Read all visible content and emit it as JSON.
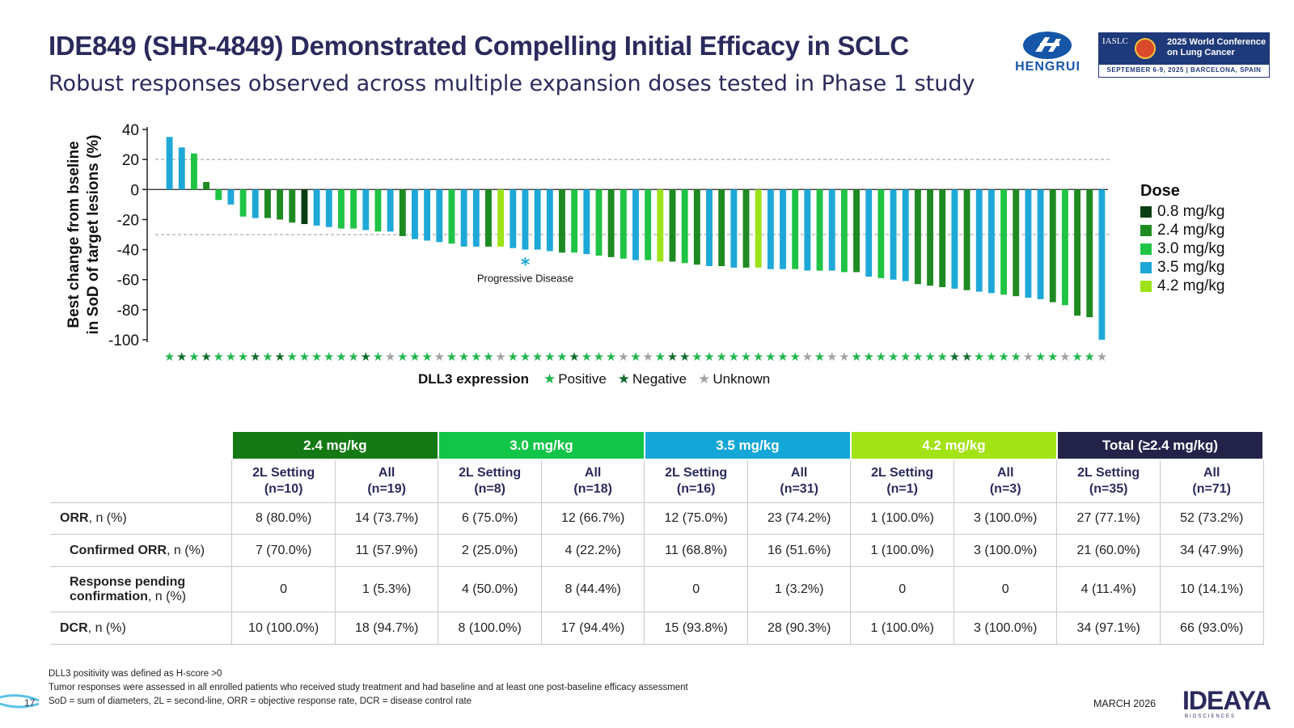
{
  "header": {
    "title": "IDE849 (SHR-4849) Demonstrated Compelling Initial Efficacy in SCLC",
    "subtitle": "Robust responses observed across multiple expansion doses tested in Phase 1 study"
  },
  "logos": {
    "hengrui": "HENGRUI",
    "iaslc_brand": "IASLC",
    "iaslc_conf": "2025 World Conference on Lung Cancer",
    "iaslc_date": "SEPTEMBER 6-9, 2025 | BARCELONA, SPAIN"
  },
  "chart_data": {
    "type": "bar",
    "ylabel_line1": "Best change from bseline",
    "ylabel_line2": "in SoD of target lesions (%)",
    "ylim": [
      -100,
      40
    ],
    "yticks": [
      "40",
      "20",
      "0",
      "-20",
      "-40",
      "-60",
      "-80",
      "-100"
    ],
    "reference_lines": [
      20,
      -30
    ],
    "annotation": {
      "marker": "*",
      "text": "Progressive Disease"
    },
    "dose_legend_title": "Dose",
    "dose_legend": [
      {
        "key": "0.8",
        "label": "0.8 mg/kg",
        "color": "#0b3d14"
      },
      {
        "key": "2.4",
        "label": "2.4 mg/kg",
        "color": "#1e8a22"
      },
      {
        "key": "3.0",
        "label": "3.0 mg/kg",
        "color": "#20c445"
      },
      {
        "key": "3.5",
        "label": "3.5 mg/kg",
        "color": "#1ea8d8"
      },
      {
        "key": "4.2",
        "label": "4.2 mg/kg",
        "color": "#9ee31a"
      }
    ],
    "dll3_title": "DLL3 expression",
    "dll3_legend": [
      {
        "key": "P",
        "label": "Positive",
        "color": "#1fb64c"
      },
      {
        "key": "N",
        "label": "Negative",
        "color": "#0f6b2c"
      },
      {
        "key": "U",
        "label": "Unknown",
        "color": "#a3a3a3"
      }
    ],
    "values": [
      35,
      28,
      24,
      5,
      -7,
      -10,
      -18,
      -19,
      -19,
      -20,
      -22,
      -23,
      -24,
      -25,
      -26,
      -26,
      -27,
      -28,
      -28,
      -31,
      -33,
      -34,
      -35,
      -36,
      -38,
      -38,
      -38,
      -38,
      -39,
      -40,
      -40,
      -41,
      -42,
      -42,
      -43,
      -44,
      -45,
      -46,
      -47,
      -47,
      -48,
      -48,
      -49,
      -50,
      -51,
      -51,
      -52,
      -52,
      -52,
      -53,
      -53,
      -53,
      -54,
      -54,
      -54,
      -55,
      -55,
      -58,
      -59,
      -60,
      -61,
      -63,
      -64,
      -65,
      -66,
      -67,
      -68,
      -69,
      -70,
      -71,
      -72,
      -73,
      -75,
      -77,
      -84,
      -85,
      -100
    ],
    "doses": [
      "3.5",
      "3.5",
      "3.0",
      "2.4",
      "3.0",
      "3.5",
      "3.0",
      "3.5",
      "2.4",
      "2.4",
      "2.4",
      "0.8",
      "3.5",
      "3.5",
      "3.0",
      "3.0",
      "3.5",
      "3.0",
      "3.5",
      "2.4",
      "3.5",
      "3.5",
      "3.5",
      "3.0",
      "3.5",
      "3.5",
      "2.4",
      "4.2",
      "3.5",
      "3.5",
      "3.5",
      "3.5",
      "2.4",
      "3.0",
      "3.5",
      "3.0",
      "2.4",
      "3.0",
      "3.5",
      "3.0",
      "4.2",
      "2.4",
      "3.0",
      "2.4",
      "3.5",
      "2.4",
      "3.5",
      "2.4",
      "4.2",
      "3.5",
      "3.5",
      "3.0",
      "3.5",
      "3.0",
      "3.5",
      "3.0",
      "2.4",
      "3.5",
      "3.0",
      "3.5",
      "3.5",
      "2.4",
      "2.4",
      "2.4",
      "3.5",
      "2.4",
      "3.5",
      "3.5",
      "3.0",
      "2.4",
      "3.5",
      "3.5",
      "2.4",
      "3.0",
      "2.4",
      "2.4",
      "3.5"
    ],
    "dll3": [
      "P",
      "N",
      "P",
      "N",
      "P",
      "P",
      "P",
      "N",
      "P",
      "N",
      "P",
      "P",
      "P",
      "P",
      "P",
      "P",
      "N",
      "P",
      "U",
      "P",
      "P",
      "P",
      "U",
      "P",
      "P",
      "P",
      "P",
      "U",
      "P",
      "P",
      "P",
      "P",
      "P",
      "N",
      "P",
      "P",
      "P",
      "U",
      "P",
      "U",
      "P",
      "N",
      "N",
      "P",
      "P",
      "P",
      "P",
      "P",
      "P",
      "P",
      "P",
      "P",
      "U",
      "P",
      "U",
      "U",
      "P",
      "P",
      "P",
      "P",
      "P",
      "P",
      "P",
      "P",
      "N",
      "N",
      "P",
      "P",
      "P",
      "P",
      "U",
      "P",
      "P",
      "U",
      "P",
      "P",
      "U"
    ],
    "pd_bar_index": 29
  },
  "table": {
    "groups": [
      {
        "label": "2.4 mg/kg",
        "color": "#157a16"
      },
      {
        "label": "3.0 mg/kg",
        "color": "#12c548"
      },
      {
        "label": "3.5 mg/kg",
        "color": "#14a6d6"
      },
      {
        "label": "4.2 mg/kg",
        "color": "#a3e214"
      },
      {
        "label": "Total (≥2.4 mg/kg)",
        "color": "#23234a"
      }
    ],
    "subheaders": [
      [
        "2L Setting",
        "(n=10)"
      ],
      [
        "All",
        "(n=19)"
      ],
      [
        "2L Setting",
        "(n=8)"
      ],
      [
        "All",
        "(n=18)"
      ],
      [
        "2L Setting",
        "(n=16)"
      ],
      [
        "All",
        "(n=31)"
      ],
      [
        "2L Setting",
        "(n=1)"
      ],
      [
        "All",
        "(n=3)"
      ],
      [
        "2L Setting",
        "(n=35)"
      ],
      [
        "All",
        "(n=71)"
      ]
    ],
    "rows": [
      {
        "bold": "ORR",
        "rest": ", n (%)",
        "indent": false,
        "cells": [
          "8 (80.0%)",
          "14 (73.7%)",
          "6 (75.0%)",
          "12 (66.7%)",
          "12 (75.0%)",
          "23 (74.2%)",
          "1 (100.0%)",
          "3 (100.0%)",
          "27 (77.1%)",
          "52 (73.2%)"
        ]
      },
      {
        "bold": "Confirmed ORR",
        "rest": ", n (%)",
        "indent": true,
        "cells": [
          "7 (70.0%)",
          "11 (57.9%)",
          "2 (25.0%)",
          "4 (22.2%)",
          "11 (68.8%)",
          "16 (51.6%)",
          "1 (100.0%)",
          "3 (100.0%)",
          "21 (60.0%)",
          "34 (47.9%)"
        ]
      },
      {
        "bold": "Response pending confirmation",
        "rest": ", n (%)",
        "indent": true,
        "cells": [
          "0",
          "1 (5.3%)",
          "4 (50.0%)",
          "8 (44.4%)",
          "0",
          "1 (3.2%)",
          "0",
          "0",
          "4 (11.4%)",
          "10 (14.1%)"
        ]
      },
      {
        "bold": "DCR",
        "rest": ", n (%)",
        "indent": false,
        "cells": [
          "10 (100.0%)",
          "18 (94.7%)",
          "8 (100.0%)",
          "17 (94.4%)",
          "15 (93.8%)",
          "28 (90.3%)",
          "1 (100.0%)",
          "3 (100.0%)",
          "34 (97.1%)",
          "66 (93.0%)"
        ]
      }
    ]
  },
  "footnotes": [
    "DLL3 positivity was defined as H-score >0",
    "Tumor responses were assessed in all enrolled patients who received study treatment and had baseline and at least one post-baseline efficacy assessment",
    "SoD =  sum of diameters, 2L = second-line, ORR = objective response rate, DCR = disease control rate"
  ],
  "footer": {
    "page_number": "17",
    "date": "MARCH 2026",
    "company": "IDEAYA",
    "company_sub": "BIOSCIENCES"
  }
}
